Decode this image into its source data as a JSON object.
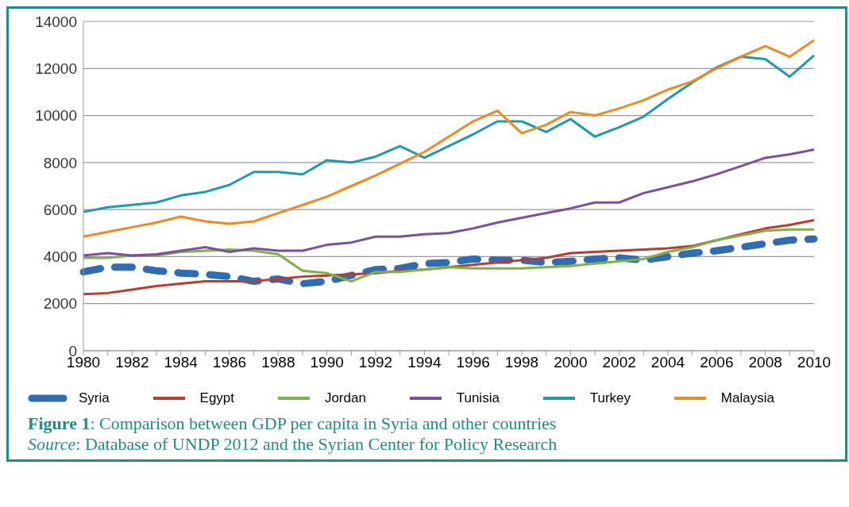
{
  "chart_data": {
    "type": "line",
    "title": "Figure 1: Comparison between GDP per capita in Syria and other countries",
    "annotations": [
      "Source: Database of UNDP 2012 and the Syrian Center for Policy Research"
    ],
    "categories": [
      "1980",
      null,
      "1982",
      null,
      "1984",
      null,
      "1986",
      null,
      "1988",
      null,
      "1990",
      null,
      "1992",
      null,
      "1994",
      null,
      "1996",
      null,
      "1998",
      null,
      "2000",
      null,
      "2002",
      null,
      "2004",
      null,
      "2006",
      null,
      "2008",
      null,
      "2010"
    ],
    "ylim": [
      0,
      14000
    ],
    "yticks": [
      0,
      2000,
      4000,
      6000,
      8000,
      10000,
      12000,
      14000
    ],
    "grid": "y",
    "legend": "bottom",
    "marker": "none",
    "series": [
      {
        "name": "Syria",
        "color": "#2e6db4",
        "line_style": "dashed",
        "values": [
          3350,
          3550,
          3550,
          3400,
          3300,
          3250,
          3150,
          2950,
          3050,
          2850,
          2950,
          3200,
          3450,
          3500,
          3700,
          3750,
          3900,
          3850,
          3850,
          3750,
          3800,
          3900,
          3950,
          3850,
          4000,
          4150,
          4250,
          4400,
          4550,
          4700,
          4750
        ]
      },
      {
        "name": "Egypt",
        "color": "#c0392b",
        "line_style": "solid",
        "values": [
          2400,
          2450,
          2600,
          2750,
          2850,
          2950,
          2950,
          2950,
          3050,
          3150,
          3200,
          3250,
          3300,
          3400,
          3450,
          3550,
          3650,
          3750,
          3850,
          3950,
          4150,
          4200,
          4250,
          4300,
          4350,
          4450,
          4700,
          4950,
          5200,
          5350,
          5550
        ]
      },
      {
        "name": "Jordan",
        "color": "#7cb342",
        "line_style": "solid",
        "values": [
          3950,
          3950,
          4050,
          4050,
          4200,
          4250,
          4300,
          4250,
          4100,
          3400,
          3300,
          2950,
          3350,
          3350,
          3450,
          3550,
          3500,
          3500,
          3500,
          3550,
          3600,
          3700,
          3800,
          3900,
          4200,
          4400,
          4700,
          4900,
          5100,
          5150,
          5150
        ]
      },
      {
        "name": "Tunisia",
        "color": "#7b4fa0",
        "line_style": "solid",
        "values": [
          4050,
          4150,
          4050,
          4100,
          4250,
          4400,
          4200,
          4350,
          4250,
          4250,
          4500,
          4600,
          4850,
          4850,
          4950,
          5000,
          5200,
          5450,
          5650,
          5850,
          6050,
          6300,
          6300,
          6700,
          6950,
          7200,
          7500,
          7850,
          8200,
          8350,
          8550
        ]
      },
      {
        "name": "Turkey",
        "color": "#1a9bb0",
        "line_style": "solid",
        "values": [
          5900,
          6100,
          6200,
          6300,
          6600,
          6750,
          7050,
          7600,
          7600,
          7500,
          8100,
          8000,
          8250,
          8700,
          8200,
          8700,
          9200,
          9750,
          9750,
          9300,
          9850,
          9100,
          9500,
          9950,
          10700,
          11400,
          12050,
          12500,
          12400,
          11650,
          12550
        ]
      },
      {
        "name": "Malaysia",
        "color": "#f0891e",
        "line_style": "solid",
        "values": [
          4850,
          5050,
          5250,
          5450,
          5700,
          5500,
          5400,
          5500,
          5850,
          6200,
          6550,
          7000,
          7450,
          7950,
          8450,
          9100,
          9750,
          10200,
          9250,
          9600,
          10150,
          10000,
          10300,
          10650,
          11100,
          11450,
          12000,
          12500,
          12950,
          12500,
          13200
        ]
      }
    ]
  }
}
